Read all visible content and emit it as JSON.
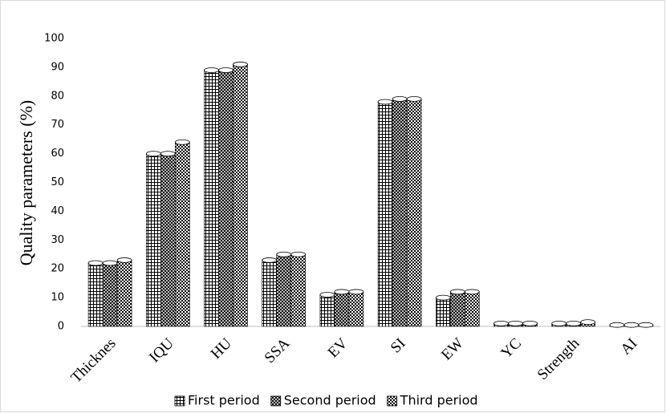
{
  "chart_data": {
    "type": "bar",
    "y_label": "Quality parameters (%)",
    "categories": [
      "Thicknes",
      "IQU",
      "HU",
      "SSA",
      "EV",
      "SI",
      "EW",
      "YC",
      "Strength",
      "AI"
    ],
    "series": [
      {
        "name": "First period",
        "color": "#000000",
        "values": [
          22,
          60,
          89,
          23,
          11,
          78,
          10,
          1,
          1,
          0.5
        ]
      },
      {
        "name": "Second period",
        "color": "#000000",
        "values": [
          22,
          60,
          89,
          25,
          12,
          79,
          12,
          1,
          1,
          0.5
        ]
      },
      {
        "name": "Third period",
        "color": "#000000",
        "values": [
          23,
          64,
          91,
          25,
          12,
          79,
          12,
          1,
          1.5,
          0.5
        ]
      }
    ],
    "ylim": [
      0,
      100
    ],
    "yticks": [
      0,
      10,
      20,
      30,
      40,
      50,
      60,
      70,
      80,
      90,
      100
    ],
    "grid": false,
    "legend": "bottom"
  }
}
